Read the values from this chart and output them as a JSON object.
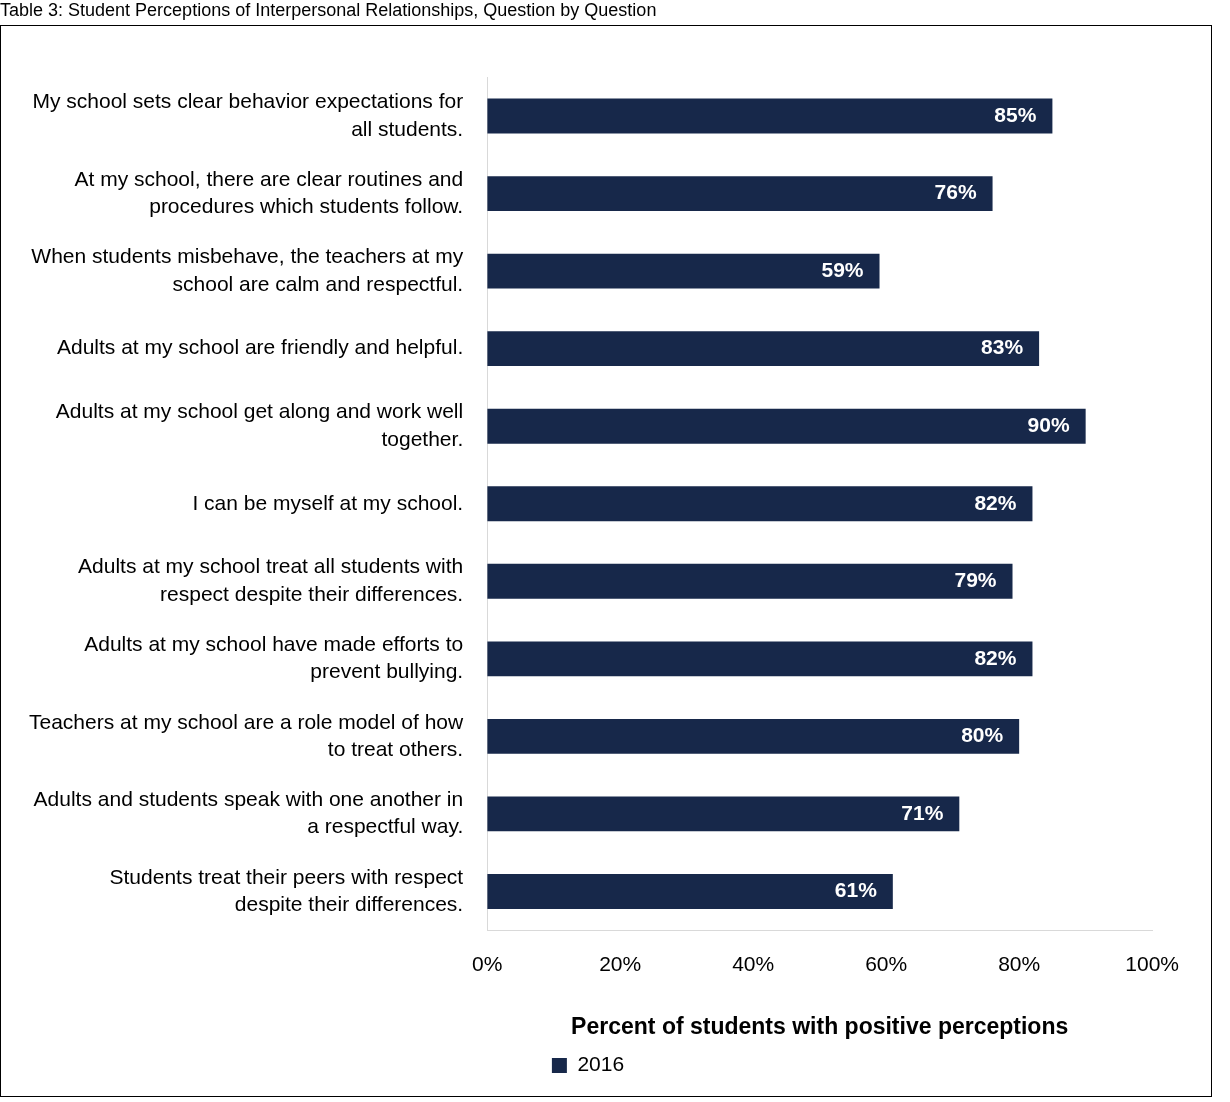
{
  "chart_data": {
    "type": "bar",
    "orientation": "horizontal",
    "title": "Table 3: Student Perceptions of Interpersonal Relationships, Question by Question",
    "xlabel": "Percent of students with positive perceptions",
    "categories": [
      "My school sets clear behavior expectations for all students.",
      "At my school, there are clear routines and procedures which students follow.",
      "When students misbehave, the teachers at my school are calm and respectful.",
      "Adults at my school are friendly and helpful.",
      "Adults at my school get along and work well together.",
      "I can be myself at my school.",
      "Adults at my school treat all students with respect despite their differences.",
      "Adults at my school have made efforts to prevent bullying.",
      "Teachers at my school are a role model of how to treat others.",
      "Adults and students speak with one another in a respectful way.",
      "Students treat their peers with respect despite their differences."
    ],
    "series": [
      {
        "name": "2016",
        "color": "#17284a",
        "values": [
          85,
          76,
          59,
          83,
          90,
          82,
          79,
          82,
          80,
          71,
          61
        ],
        "value_labels": [
          "85%",
          "76%",
          "59%",
          "83%",
          "90%",
          "82%",
          "79%",
          "82%",
          "80%",
          "71%",
          "61%"
        ]
      }
    ],
    "xlim": [
      0,
      100
    ],
    "xticks": [
      {
        "value": 0,
        "label": "0%"
      },
      {
        "value": 20,
        "label": "20%"
      },
      {
        "value": 40,
        "label": "40%"
      },
      {
        "value": 60,
        "label": "60%"
      },
      {
        "value": 80,
        "label": "80%"
      },
      {
        "value": 100,
        "label": "100%"
      }
    ],
    "grid": false,
    "legend": "bottom"
  }
}
